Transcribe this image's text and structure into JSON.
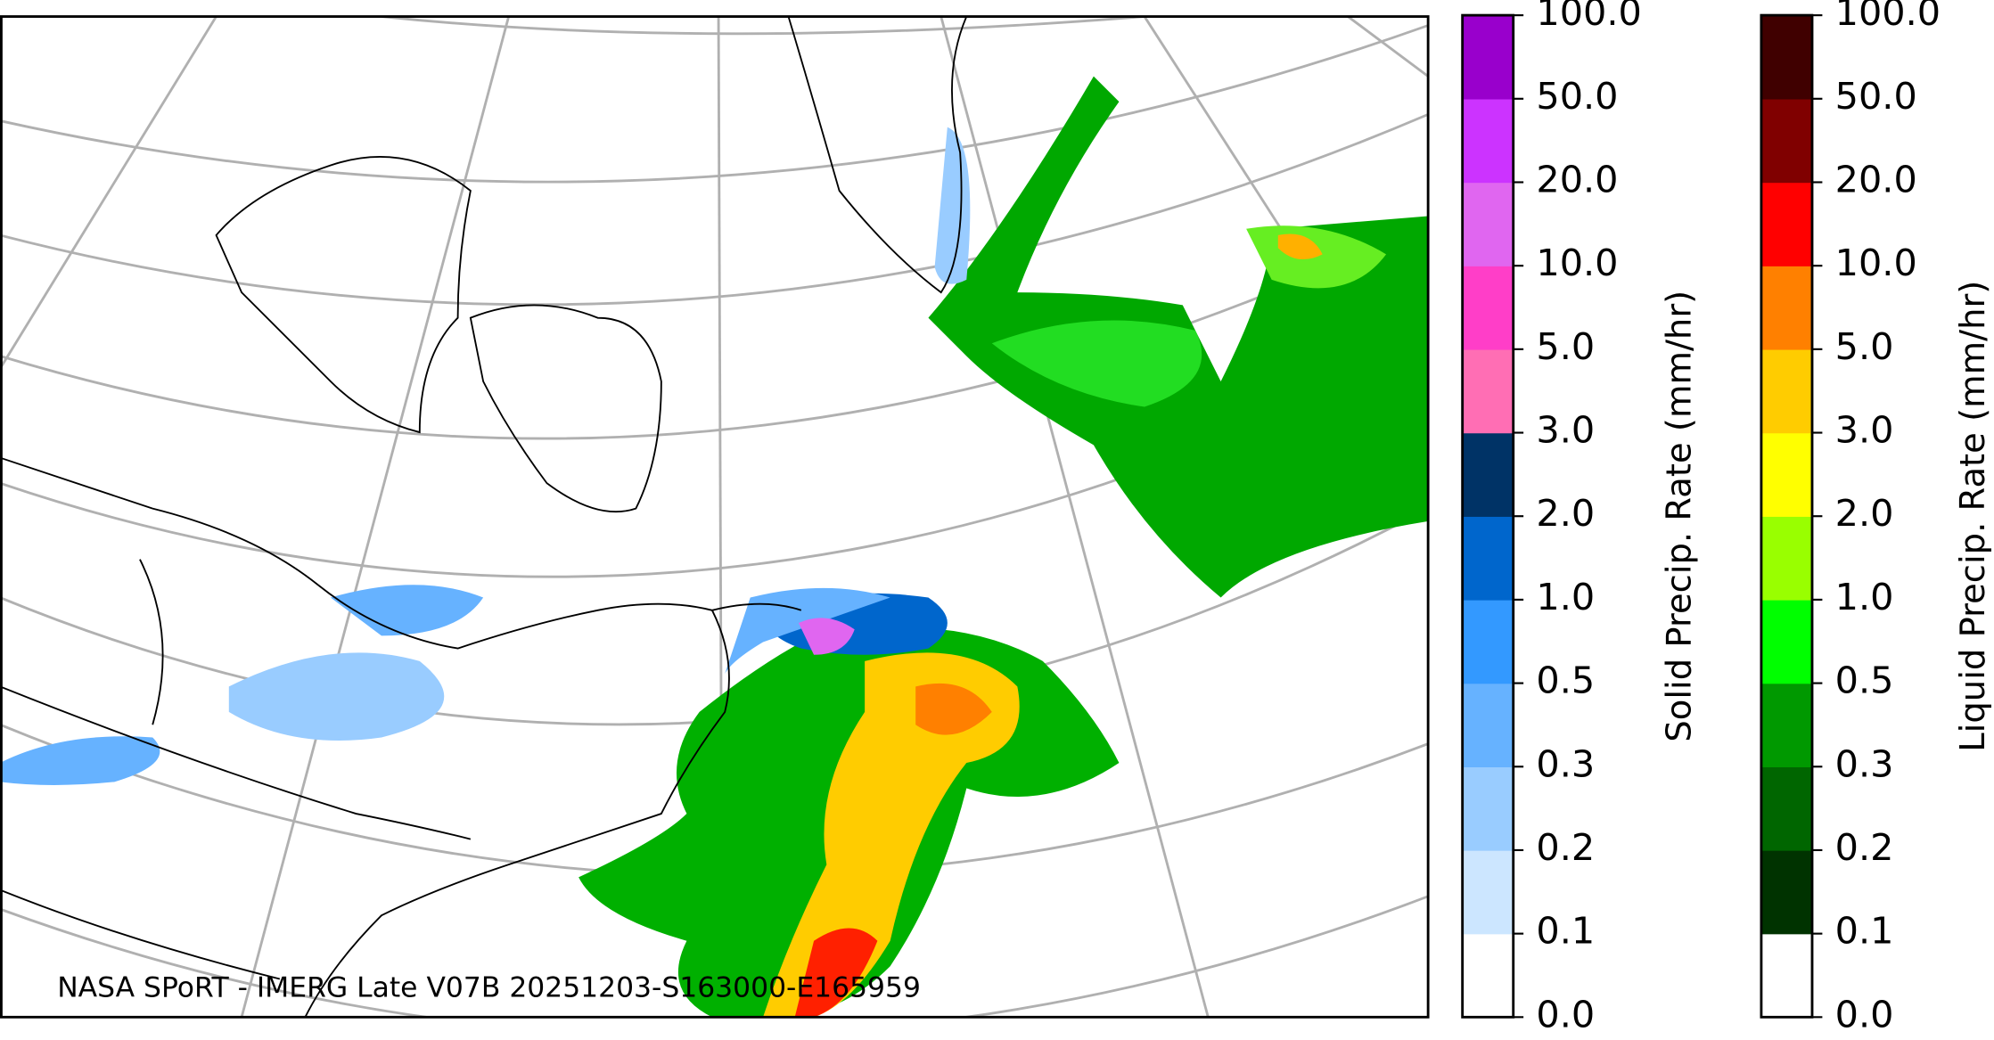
{
  "map": {
    "caption": "NASA SPoRT - IMERG Late V07B 20251203-S163000-E165959"
  },
  "colorbars": [
    {
      "label": "Solid Precip. Rate (mm/hr)",
      "ticks": [
        {
          "value": 0,
          "label": "0.0"
        },
        {
          "value": 0.1,
          "label": "0.1"
        },
        {
          "value": 0.2,
          "label": "0.2"
        },
        {
          "value": 0.3,
          "label": "0.3"
        },
        {
          "value": 0.5,
          "label": "0.5"
        },
        {
          "value": 1,
          "label": "1.0"
        },
        {
          "value": 2,
          "label": "2.0"
        },
        {
          "value": 3,
          "label": "3.0"
        },
        {
          "value": 5,
          "label": "5.0"
        },
        {
          "value": 10,
          "label": "10.0"
        },
        {
          "value": 20,
          "label": "20.0"
        },
        {
          "value": 50,
          "label": "50.0"
        },
        {
          "value": 100,
          "label": "100.0"
        }
      ],
      "colors": [
        "#ffffff",
        "#cce6ff",
        "#99ccff",
        "#66b2ff",
        "#3399ff",
        "#0066cc",
        "#003366",
        "#ff6eb4",
        "#ff3ec8",
        "#e066f0",
        "#cc33ff",
        "#9900cc"
      ]
    },
    {
      "label": "Liquid Precip. Rate (mm/hr)",
      "ticks": [
        {
          "value": 0,
          "label": "0.0"
        },
        {
          "value": 0.1,
          "label": "0.1"
        },
        {
          "value": 0.2,
          "label": "0.2"
        },
        {
          "value": 0.3,
          "label": "0.3"
        },
        {
          "value": 0.5,
          "label": "0.5"
        },
        {
          "value": 1,
          "label": "1.0"
        },
        {
          "value": 2,
          "label": "2.0"
        },
        {
          "value": 3,
          "label": "3.0"
        },
        {
          "value": 5,
          "label": "5.0"
        },
        {
          "value": 10,
          "label": "10.0"
        },
        {
          "value": 20,
          "label": "20.0"
        },
        {
          "value": 50,
          "label": "50.0"
        },
        {
          "value": 100,
          "label": "100.0"
        }
      ],
      "colors": [
        "#ffffff",
        "#003300",
        "#006600",
        "#009900",
        "#00ff00",
        "#99ff00",
        "#ffff00",
        "#ffcc00",
        "#ff8000",
        "#ff0000",
        "#800000",
        "#400000"
      ]
    }
  ]
}
